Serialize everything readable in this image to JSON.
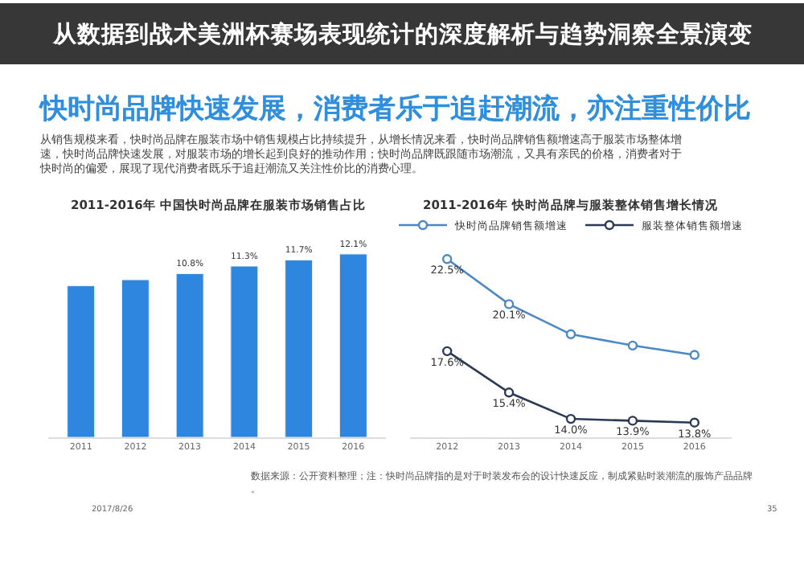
{
  "chart_data": [
    {
      "type": "other",
      "title": "快时尚品牌快速发展，消费者乐于追赶潮流，亦注重性价比",
      "annotations": [
        "从销售规模来看，快时尚品牌在服装市场中销售规模占比持续提升，从增长情况来看，快时尚品牌销售额增速高于服装市场整体增速，快时尚品牌快速发展，对服装市场的增长起到良好的推动作用；快时尚品牌既跟随市场潮流，又具有亲民的价格，消费者对于快时尚的偏爱，展现了现代消费者既乐于追赶潮流又关注性价比的消费心理。",
        "从数据到战术美洲杯赛场表现统计的深度解析与趋势洞察全景演变",
        "数据来源：公开资料整理；注：快时尚品牌指的是对于时装发布会的设计快速反应，制成紧贴时装潮流的服饰产品品牌。",
        "2017/8/26",
        "35"
      ]
    },
    {
      "type": "bar",
      "title": "2011-2016年 中国快时尚品牌在服装市场销售占比",
      "categories": [
        "2011",
        "2012",
        "2013",
        "2014",
        "2015",
        "2016"
      ],
      "values": [
        10.0,
        10.4,
        10.8,
        11.3,
        11.7,
        12.1
      ],
      "value_labels": [
        null,
        null,
        "10.8%",
        "11.3%",
        "11.7%",
        "12.1%"
      ],
      "color": "#2e86de",
      "tick_labels": "x",
      "legend": false
    },
    {
      "type": "line",
      "title": "2011-2016年 快时尚品牌与服装整体销售增长情况",
      "categories": [
        "2012",
        "2013",
        "2014",
        "2015",
        "2016"
      ],
      "tick_labels": "x",
      "legend": "top",
      "marker": "circle",
      "line_style": "solid",
      "series": [
        {
          "name": "快时尚品牌销售额增速",
          "color": "#4a88c8",
          "values": [
            22.5,
            20.1,
            18.5,
            17.9,
            17.4
          ],
          "value_labels": [
            "22.5%",
            "20.1%",
            null,
            null,
            null
          ]
        },
        {
          "name": "服装整体销售额增速",
          "color": "#2b3a55",
          "values": [
            17.6,
            15.4,
            14.0,
            13.9,
            13.8
          ],
          "value_labels": [
            "17.6%",
            "15.4%",
            "14.0%",
            "13.9%",
            "13.8%"
          ]
        }
      ]
    }
  ]
}
